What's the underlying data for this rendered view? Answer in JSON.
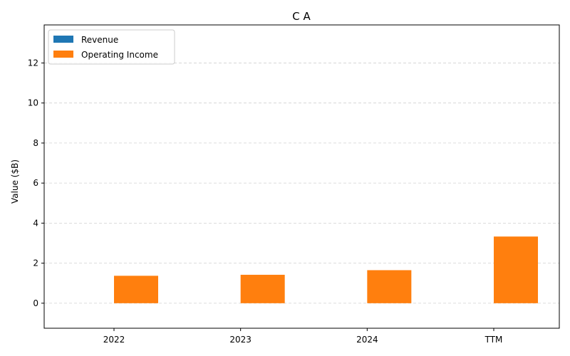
{
  "chart_data": {
    "type": "bar",
    "title": "C A",
    "xlabel": "",
    "ylabel": "Value ($B)",
    "categories": [
      "2022",
      "2023",
      "2024",
      "TTM"
    ],
    "series": [
      {
        "name": "Revenue",
        "values": [
          0,
          0,
          0,
          0
        ],
        "color": "#1f77b4"
      },
      {
        "name": "Operating Income",
        "values": [
          1.37,
          1.42,
          1.65,
          3.33
        ],
        "color": "#ff7f0e"
      }
    ],
    "ylim": [
      -1.25,
      13.9
    ],
    "yticks": [
      "0",
      "2",
      "4",
      "6",
      "8",
      "10",
      "12"
    ],
    "grid": "horizontal-dashed",
    "legend_position": "top-left"
  }
}
